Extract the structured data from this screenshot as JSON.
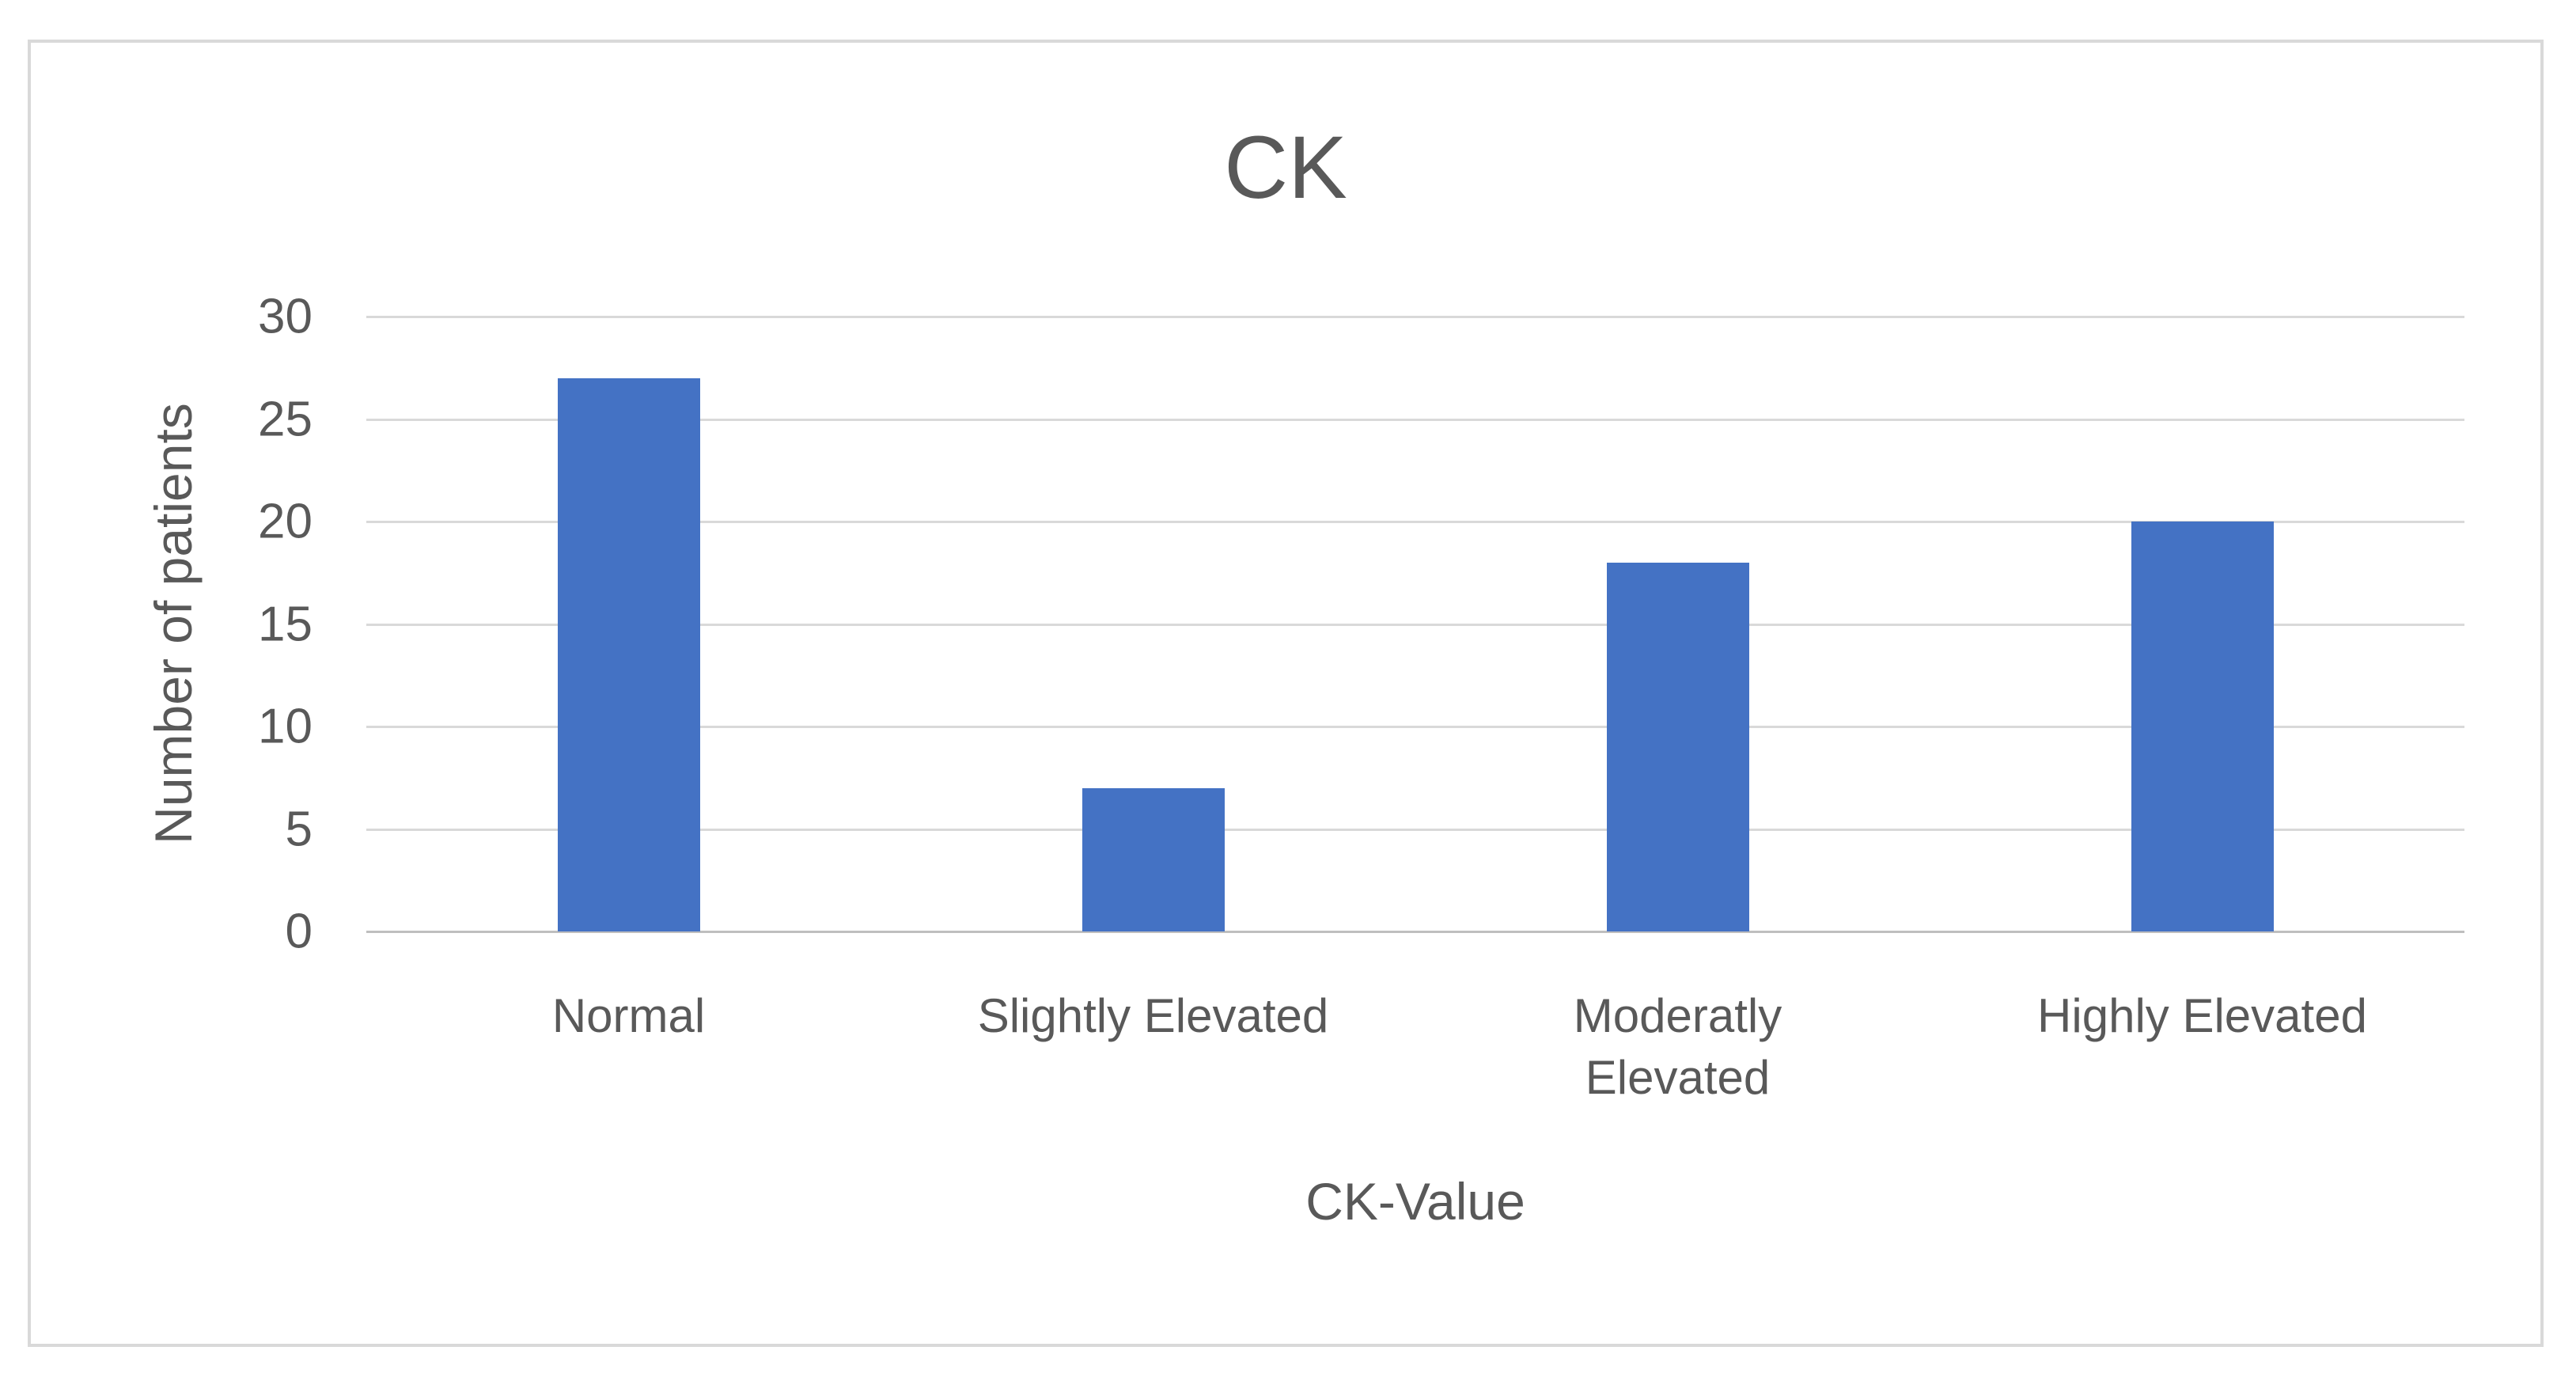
{
  "chart_data": {
    "type": "bar",
    "title": "CK",
    "categories": [
      "Normal",
      "Slightly Elevated",
      "Moderatly\nElevated",
      "Highly Elevated"
    ],
    "values": [
      27,
      7,
      18,
      20
    ],
    "xlabel": "CK-Value",
    "ylabel": "Number of patients",
    "ylim": [
      0,
      30
    ],
    "yticks": [
      0,
      5,
      10,
      15,
      20,
      25,
      30
    ],
    "grid": true,
    "legend_position": "none",
    "colors": {
      "bar": "#4472C4",
      "gridline": "#D9D9D9",
      "axis_line": "#BFBFBF",
      "text": "#595959",
      "frame_border": "#D9D9D9",
      "background": "#FFFFFF"
    }
  }
}
